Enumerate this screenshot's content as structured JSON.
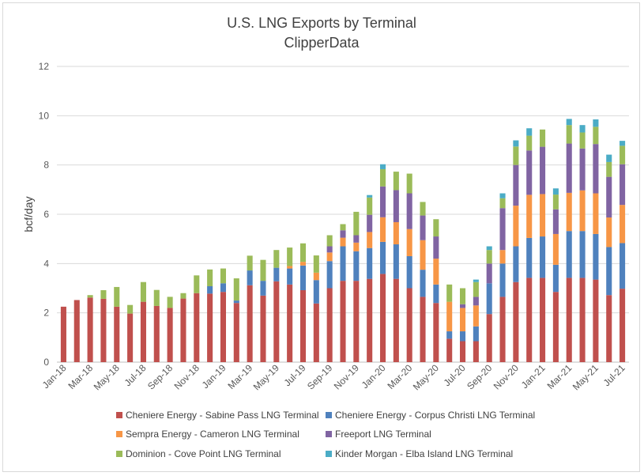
{
  "chart_data": {
    "type": "bar",
    "stacked": true,
    "title": "U.S. LNG Exports by Terminal",
    "subtitle": "ClipperData",
    "ylabel": "bcf/day",
    "xlabel": "",
    "ylim": [
      0,
      12
    ],
    "yticks": [
      0,
      2,
      4,
      6,
      8,
      10,
      12
    ],
    "grid": true,
    "legend_position": "bottom",
    "categories": [
      "Jan-18",
      "Feb-18",
      "Mar-18",
      "Apr-18",
      "May-18",
      "Jun-18",
      "Jul-18",
      "Aug-18",
      "Sep-18",
      "Oct-18",
      "Nov-18",
      "Dec-18",
      "Jan-19",
      "Feb-19",
      "Mar-19",
      "Apr-19",
      "May-19",
      "Jun-19",
      "Jul-19",
      "Aug-19",
      "Sep-19",
      "Oct-19",
      "Nov-19",
      "Dec-19",
      "Jan-20",
      "Feb-20",
      "Mar-20",
      "Apr-20",
      "May-20",
      "Jun-20",
      "Jul-20",
      "Aug-20",
      "Sep-20",
      "Oct-20",
      "Nov-20",
      "Dec-20",
      "Jan-21",
      "Feb-21",
      "Mar-21",
      "Apr-21",
      "May-21",
      "Jun-21",
      "Jul-21"
    ],
    "x_tick_labels": [
      "Jan-18",
      "Mar-18",
      "May-18",
      "Jul-18",
      "Sep-18",
      "Nov-18",
      "Jan-19",
      "Mar-19",
      "May-19",
      "Jul-19",
      "Sep-19",
      "Nov-19",
      "Jan-20",
      "Mar-20",
      "May-20",
      "Jul-20",
      "Sep-20",
      "Nov-20",
      "Jan-21",
      "Mar-21",
      "May-21",
      "Jul-21"
    ],
    "series": [
      {
        "name": "Cheniere Energy - Sabine Pass LNG Terminal",
        "color": "#c0504d",
        "values": [
          2.25,
          2.52,
          2.62,
          2.57,
          2.25,
          1.97,
          2.45,
          2.28,
          2.2,
          2.58,
          2.8,
          2.78,
          2.85,
          2.4,
          3.12,
          2.7,
          3.28,
          3.15,
          2.92,
          2.38,
          3.0,
          3.3,
          3.3,
          3.38,
          3.58,
          3.38,
          3.0,
          2.65,
          2.4,
          0.95,
          0.85,
          0.85,
          1.95,
          2.65,
          3.25,
          3.42,
          3.42,
          2.85,
          3.42,
          3.42,
          3.35,
          2.72,
          2.98
        ]
      },
      {
        "name": "Cheniere Energy - Corpus Christi LNG Terminal",
        "color": "#4f81bd",
        "values": [
          0,
          0,
          0,
          0,
          0,
          0,
          0,
          0,
          0,
          0,
          0,
          0.3,
          0.35,
          0.1,
          0.6,
          0.6,
          0.55,
          0.65,
          1.0,
          0.95,
          1.1,
          1.4,
          1.2,
          1.25,
          1.3,
          1.4,
          1.3,
          1.1,
          0.75,
          0.3,
          0.4,
          0.6,
          1.25,
          1.35,
          1.45,
          1.62,
          1.68,
          1.1,
          1.9,
          1.9,
          1.85,
          1.95,
          1.85
        ]
      },
      {
        "name": "Sempra Energy - Cameron LNG Terminal",
        "color": "#f79646",
        "values": [
          0,
          0,
          0,
          0,
          0,
          0,
          0,
          0,
          0,
          0,
          0,
          0,
          0,
          0,
          0,
          0,
          0,
          0.1,
          0.15,
          0.3,
          0.35,
          0.35,
          0.35,
          0.65,
          1.0,
          0.9,
          1.1,
          1.2,
          1.05,
          1.2,
          0.95,
          0.85,
          0,
          0.55,
          1.65,
          1.75,
          1.72,
          1.25,
          1.55,
          1.65,
          1.65,
          1.2,
          1.55
        ]
      },
      {
        "name": "Freeport LNG Terminal",
        "color": "#8064a2",
        "values": [
          0,
          0,
          0,
          0,
          0,
          0,
          0,
          0,
          0,
          0,
          0,
          0,
          0,
          0,
          0,
          0,
          0,
          0,
          0,
          0,
          0.25,
          0.3,
          0.3,
          0.7,
          1.25,
          1.3,
          1.45,
          1.0,
          0.9,
          0,
          0.15,
          0.35,
          0.8,
          1.7,
          1.65,
          1.8,
          1.92,
          1.0,
          2.0,
          1.7,
          2.0,
          1.65,
          1.65
        ]
      },
      {
        "name": "Dominion - Cove Point LNG Terminal",
        "color": "#9bbb59",
        "values": [
          0,
          0,
          0.1,
          0.35,
          0.8,
          0.35,
          0.8,
          0.65,
          0.45,
          0.22,
          0.72,
          0.68,
          0.6,
          0.9,
          0.6,
          0.85,
          0.72,
          0.75,
          0.75,
          0.7,
          0.45,
          0.25,
          0.95,
          0.7,
          0.7,
          0.75,
          0.8,
          0.55,
          0.7,
          0.7,
          0.65,
          0.6,
          0.55,
          0.4,
          0.75,
          0.6,
          0.7,
          0.6,
          0.75,
          0.65,
          0.7,
          0.6,
          0.75
        ]
      },
      {
        "name": "Kinder Morgan - Elba Island LNG Terminal",
        "color": "#4bacc6",
        "values": [
          0,
          0,
          0,
          0,
          0,
          0,
          0,
          0,
          0,
          0,
          0,
          0,
          0,
          0,
          0,
          0,
          0,
          0,
          0,
          0,
          0,
          0,
          0,
          0.1,
          0.2,
          0,
          0,
          0,
          0,
          0,
          0,
          0.1,
          0.15,
          0.2,
          0.25,
          0.3,
          0,
          0.25,
          0.25,
          0.3,
          0.3,
          0.3,
          0.2
        ]
      }
    ]
  }
}
